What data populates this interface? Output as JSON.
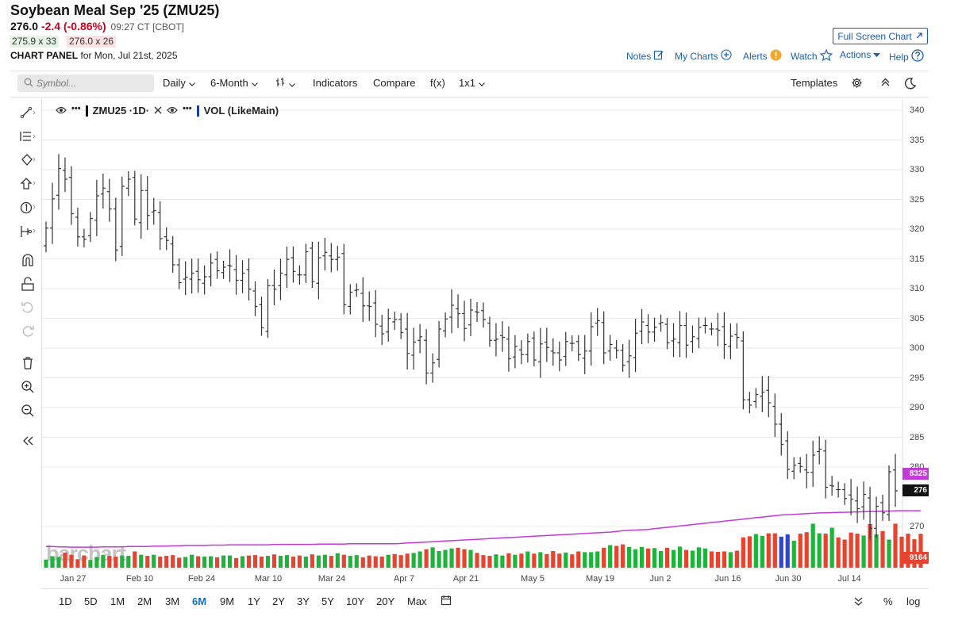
{
  "header": {
    "title": "Soybean Meal Sep '25 (ZMU25)",
    "last": "276.0",
    "change": "-2.4 (-0.86%)",
    "time": "09:27 CT [CBOT]",
    "bid": "275.9 x 33",
    "ask": "276.0 x 26",
    "panel_label": "CHART PANEL",
    "panel_date": "for Mon, Jul 21st, 2025",
    "fullscreen": "Full Screen Chart"
  },
  "toplinks": {
    "notes": "Notes",
    "mycharts": "My Charts",
    "alerts": "Alerts",
    "watch": "Watch",
    "actions": "Actions",
    "help": "Help"
  },
  "toolbar": {
    "symbol_placeholder": "Symbol...",
    "interval": "Daily",
    "range": "6-Month",
    "indicators": "Indicators",
    "compare": "Compare",
    "fx": "f(x)",
    "layout": "1x1",
    "templates": "Templates"
  },
  "legend": {
    "main": "ZMU25 ·1D·",
    "vol": "VOL (LikeMain)"
  },
  "watermark": "barchart",
  "x_labels": [
    "Jan 27",
    "Feb 10",
    "Feb 24",
    "Mar 10",
    "Mar 24",
    "Apr 7",
    "Apr 21",
    "May 5",
    "May 19",
    "Jun 2",
    "Jun 16",
    "Jun 30",
    "Jul 14"
  ],
  "y_labels": [
    "340",
    "335",
    "330",
    "325",
    "320",
    "315",
    "310",
    "305",
    "300",
    "295",
    "290",
    "285",
    "280",
    "270"
  ],
  "badges": {
    "ma": "8325",
    "last": "276",
    "vol": "9164"
  },
  "ranges": [
    "1D",
    "5D",
    "1M",
    "2M",
    "3M",
    "6M",
    "9M",
    "1Y",
    "2Y",
    "3Y",
    "5Y",
    "10Y",
    "20Y",
    "Max"
  ],
  "active_range": "6M",
  "bottom_right": {
    "pct": "%",
    "log": "log"
  },
  "colors": {
    "accent": "#1a5fa8",
    "up": "#1db43c",
    "down": "#e8432e",
    "ma": "#c23ad8",
    "neg": "#d0021b"
  },
  "chart_data": {
    "type": "ohlc",
    "title": "Soybean Meal Sep '25 (ZMU25)",
    "ylim": [
      266,
      342
    ],
    "closes": [
      320.2,
      325.1,
      330.2,
      328.4,
      322.6,
      318.7,
      318.3,
      321.8,
      325.6,
      326.9,
      323.4,
      316.5,
      327.2,
      328.4,
      321.7,
      326.5,
      322.3,
      323.1,
      318.4,
      318.1,
      314.0,
      311.0,
      311.9,
      312.6,
      311.5,
      312.0,
      314.3,
      313.0,
      313.6,
      313.8,
      311.4,
      312.6,
      309.9,
      307.0,
      303.4,
      310.5,
      309.9,
      312.6,
      314.9,
      312.9,
      312.3,
      316.2,
      311.2,
      315.2,
      316.1,
      314.9,
      315.3,
      307.3,
      309.4,
      309.8,
      307.1,
      307.0,
      304.0,
      302.4,
      305.0,
      304.8,
      302.6,
      299.1,
      301.0,
      301.9,
      295.8,
      297.5,
      303.2,
      304.9,
      307.2,
      305.8,
      303.3,
      306.4,
      306.0,
      304.8,
      301.3,
      301.5,
      301.8,
      298.2,
      300.3,
      298.9,
      301.1,
      298.0,
      300.7,
      300.1,
      299.2,
      298.0,
      301.1,
      300.8,
      298.9,
      299.5,
      303.6,
      304.6,
      299.2,
      300.6,
      299.6,
      297.1,
      298.7,
      302.5,
      304.4,
      302.7,
      303.5,
      304.3,
      300.9,
      301.5,
      303.8,
      300.5,
      301.9,
      303.5,
      303.8,
      303.2,
      303.0,
      300.6,
      302.0,
      301.8,
      291.3,
      290.4,
      292.2,
      292.6,
      290.8,
      287.2,
      283.8,
      279.6,
      280.3,
      280.1,
      279.1,
      282.0,
      283.0,
      276.6,
      276.8,
      276.2,
      274.7,
      274.6,
      273.0,
      275.4,
      269.7,
      273.4,
      272.3,
      279.2,
      276.0
    ],
    "volume": [
      2200,
      3100,
      2900,
      4100,
      3500,
      2300,
      3300,
      2100,
      2900,
      3400,
      3200,
      3000,
      3300,
      3200,
      4400,
      3500,
      3200,
      3500,
      3000,
      3200,
      3400,
      2700,
      2900,
      3500,
      3100,
      3000,
      3100,
      2800,
      3300,
      3300,
      2600,
      3100,
      3300,
      3400,
      3000,
      3200,
      3600,
      3200,
      3400,
      3000,
      3300,
      3000,
      3600,
      3300,
      3500,
      3200,
      3900,
      3500,
      3200,
      3400,
      2800,
      3300,
      3100,
      3000,
      3500,
      3700,
      3400,
      3800,
      4000,
      4400,
      5000,
      5500,
      4500,
      4800,
      5200,
      5400,
      5000,
      4800,
      4000,
      3400,
      3200,
      3600,
      3300,
      3900,
      3500,
      3800,
      4400,
      3800,
      4200,
      3700,
      4500,
      3800,
      4100,
      3600,
      4400,
      4200,
      4200,
      4400,
      5400,
      6100,
      5900,
      6300,
      5600,
      5000,
      5600,
      5200,
      5300,
      4500,
      5400,
      4800,
      5700,
      4800,
      4600,
      5500,
      5200,
      4400,
      4300,
      4400,
      4200,
      4600,
      8200,
      8500,
      9100,
      8600,
      9300,
      9300,
      8400,
      9000,
      7300,
      9200,
      9600,
      11900,
      9300,
      9200,
      10800,
      8200,
      7600,
      9500,
      9200,
      8700,
      11800,
      9000,
      9900,
      7600,
      11900,
      8400,
      9200,
      7700,
      9164
    ],
    "ma_volume": [
      3100,
      3100,
      3050,
      3050,
      3000,
      3000,
      3000,
      3000,
      3000,
      3050,
      3050,
      3050,
      3050,
      3100,
      3100,
      3100,
      3100,
      3150,
      3150,
      3150,
      3200,
      3200,
      3250,
      3250,
      3250,
      3250,
      3300,
      3300,
      3300,
      3350,
      3350,
      3350,
      3350,
      3350,
      3350,
      3350,
      3400,
      3400,
      3400,
      3400,
      3400,
      3400,
      3400,
      3450,
      3450,
      3450,
      3450,
      3450,
      3500,
      3500,
      3500,
      3500,
      3500,
      3500,
      3500,
      3500,
      3550,
      3600,
      3650,
      3700,
      3750,
      3800,
      3850,
      3900,
      3950,
      4000,
      4050,
      4100,
      4150,
      4200,
      4250,
      4300,
      4350,
      4400,
      4450,
      4500,
      4550,
      4600,
      4650,
      4700,
      4750,
      4800,
      4850,
      4900,
      4950,
      5000,
      5050,
      5100,
      5150,
      5200,
      5300,
      5400,
      5450,
      5500,
      5550,
      5600,
      5700,
      5800,
      5900,
      6000,
      6100,
      6200,
      6300,
      6400,
      6500,
      6600,
      6700,
      6800,
      6900,
      7000,
      7100,
      7200,
      7300,
      7400,
      7500,
      7600,
      7700,
      7750,
      7800,
      7850,
      7900,
      7950,
      8000,
      8025,
      8050,
      8075,
      8100,
      8125,
      8150,
      8175,
      8200,
      8225,
      8250,
      8275,
      8300,
      8325,
      8325,
      8325,
      8325
    ]
  }
}
